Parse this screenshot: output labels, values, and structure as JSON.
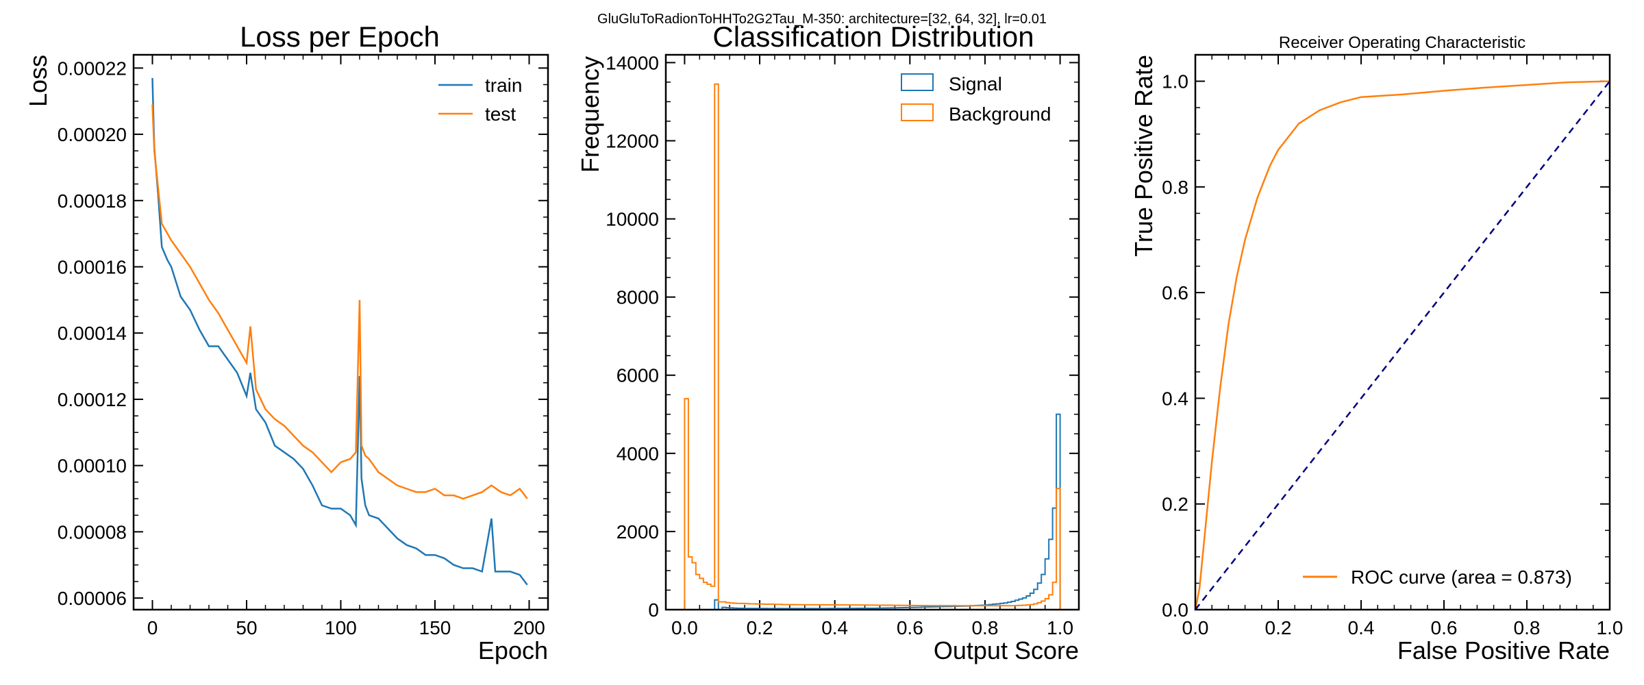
{
  "suptitle": "GluGluToRadionToHHTo2G2Tau_M-350: architecture=[32, 64, 32], lr=0.01",
  "colors": {
    "train": "#1f77b4",
    "test": "#ff7f0e",
    "signal": "#1f77b4",
    "background": "#ff7f0e",
    "roc": "#ff7f0e",
    "diagonal": "#000080"
  },
  "chart_data": [
    {
      "type": "line",
      "title": "Loss per Epoch",
      "xlabel": "Epoch",
      "ylabel": "Loss",
      "xlim": [
        -10,
        210
      ],
      "ylim": [
        5.65e-05,
        0.000224
      ],
      "xticks": [
        0,
        50,
        100,
        150,
        200
      ],
      "xtick_labels": [
        "0",
        "50",
        "100",
        "150",
        "200"
      ],
      "yticks": [
        6e-05,
        8e-05,
        0.0001,
        0.00012,
        0.00014,
        0.00016,
        0.00018,
        0.0002,
        0.00022
      ],
      "ytick_labels": [
        "0.00006",
        "0.00008",
        "0.00010",
        "0.00012",
        "0.00014",
        "0.00016",
        "0.00018",
        "0.00020",
        "0.00022"
      ],
      "legend_position": "top-right",
      "series": [
        {
          "name": "train",
          "color": "#1f77b4",
          "x": [
            0,
            1,
            3,
            5,
            8,
            10,
            15,
            20,
            25,
            30,
            35,
            40,
            45,
            50,
            52,
            55,
            60,
            65,
            70,
            75,
            80,
            85,
            90,
            95,
            100,
            105,
            108,
            110,
            111,
            113,
            115,
            120,
            125,
            130,
            135,
            140,
            145,
            150,
            155,
            160,
            165,
            170,
            175,
            180,
            182,
            185,
            190,
            195,
            199
          ],
          "y": [
            0.000217,
            0.000196,
            0.000182,
            0.000166,
            0.000162,
            0.00016,
            0.000151,
            0.000147,
            0.000141,
            0.000136,
            0.000136,
            0.000132,
            0.000128,
            0.000121,
            0.000128,
            0.000117,
            0.000113,
            0.000106,
            0.000104,
            0.000102,
            9.9e-05,
            9.4e-05,
            8.8e-05,
            8.7e-05,
            8.7e-05,
            8.5e-05,
            8.2e-05,
            0.000127,
            9.6e-05,
            8.8e-05,
            8.5e-05,
            8.4e-05,
            8.1e-05,
            7.8e-05,
            7.6e-05,
            7.5e-05,
            7.3e-05,
            7.3e-05,
            7.2e-05,
            7e-05,
            6.9e-05,
            6.9e-05,
            6.8e-05,
            8.4e-05,
            6.8e-05,
            6.8e-05,
            6.8e-05,
            6.7e-05,
            6.4e-05
          ]
        },
        {
          "name": "test",
          "color": "#ff7f0e",
          "x": [
            0,
            1,
            3,
            5,
            8,
            10,
            15,
            20,
            25,
            30,
            35,
            40,
            45,
            50,
            52,
            55,
            60,
            65,
            70,
            75,
            80,
            85,
            90,
            95,
            100,
            105,
            108,
            110,
            111,
            113,
            115,
            120,
            125,
            130,
            135,
            140,
            145,
            150,
            155,
            160,
            165,
            170,
            175,
            180,
            185,
            190,
            195,
            199
          ],
          "y": [
            0.000209,
            0.000195,
            0.000184,
            0.000173,
            0.00017,
            0.000168,
            0.000164,
            0.00016,
            0.000155,
            0.00015,
            0.000146,
            0.000141,
            0.000136,
            0.000131,
            0.000142,
            0.000123,
            0.000117,
            0.000114,
            0.000112,
            0.000109,
            0.000106,
            0.000104,
            0.000101,
            9.8e-05,
            0.000101,
            0.000102,
            0.000104,
            0.00015,
            0.000106,
            0.000103,
            0.000102,
            9.8e-05,
            9.6e-05,
            9.4e-05,
            9.3e-05,
            9.2e-05,
            9.2e-05,
            9.3e-05,
            9.1e-05,
            9.1e-05,
            9e-05,
            9.1e-05,
            9.2e-05,
            9.4e-05,
            9.2e-05,
            9.1e-05,
            9.3e-05,
            9e-05
          ]
        }
      ]
    },
    {
      "type": "bar",
      "histtype": "step",
      "title": "Classification Distribution",
      "xlabel": "Output Score",
      "ylabel": "Frequency",
      "xlim": [
        -0.05,
        1.05
      ],
      "ylim": [
        0,
        14200
      ],
      "xticks": [
        0,
        0.2,
        0.4,
        0.6,
        0.8,
        1.0
      ],
      "xtick_labels": [
        "0.0",
        "0.2",
        "0.4",
        "0.6",
        "0.8",
        "1.0"
      ],
      "yticks": [
        0,
        2000,
        4000,
        6000,
        8000,
        10000,
        12000,
        14000
      ],
      "ytick_labels": [
        "0",
        "2000",
        "4000",
        "6000",
        "8000",
        "10000",
        "12000",
        "14000"
      ],
      "bins": 100,
      "legend_position": "top-right",
      "series": [
        {
          "name": "Signal",
          "color": "#1f77b4",
          "values": [
            0,
            0,
            0,
            0,
            0,
            0,
            0,
            0,
            250,
            0,
            60,
            50,
            45,
            40,
            35,
            35,
            30,
            30,
            30,
            30,
            30,
            30,
            28,
            28,
            28,
            28,
            28,
            28,
            28,
            28,
            28,
            28,
            28,
            28,
            28,
            28,
            28,
            28,
            30,
            30,
            30,
            30,
            30,
            32,
            32,
            32,
            34,
            34,
            35,
            35,
            36,
            38,
            40,
            42,
            44,
            46,
            48,
            50,
            52,
            55,
            58,
            60,
            62,
            65,
            68,
            70,
            72,
            75,
            78,
            80,
            82,
            85,
            88,
            90,
            92,
            95,
            100,
            105,
            110,
            115,
            120,
            130,
            140,
            150,
            160,
            170,
            190,
            210,
            240,
            270,
            300,
            350,
            420,
            520,
            680,
            900,
            1300,
            1800,
            2600,
            5000
          ]
        },
        {
          "name": "Background",
          "color": "#ff7f0e",
          "values": [
            5400,
            1350,
            1200,
            900,
            800,
            700,
            650,
            600,
            13450,
            200,
            200,
            180,
            170,
            165,
            160,
            160,
            155,
            150,
            150,
            145,
            145,
            140,
            140,
            140,
            135,
            135,
            130,
            130,
            130,
            128,
            128,
            126,
            126,
            125,
            125,
            124,
            124,
            123,
            123,
            122,
            122,
            121,
            121,
            120,
            120,
            120,
            118,
            118,
            118,
            117,
            116,
            115,
            115,
            114,
            113,
            112,
            112,
            110,
            110,
            108,
            108,
            106,
            106,
            105,
            105,
            104,
            104,
            103,
            103,
            102,
            102,
            102,
            101,
            101,
            100,
            100,
            100,
            100,
            100,
            100,
            100,
            100,
            100,
            100,
            100,
            100,
            100,
            100,
            105,
            110,
            115,
            120,
            130,
            150,
            180,
            220,
            280,
            380,
            700,
            3100
          ]
        }
      ]
    },
    {
      "type": "line",
      "title": "Receiver Operating Characteristic",
      "xlabel": "False Positive Rate",
      "ylabel": "True Positive Rate",
      "xlim": [
        0,
        1
      ],
      "ylim": [
        0,
        1.05
      ],
      "xticks": [
        0,
        0.2,
        0.4,
        0.6,
        0.8,
        1.0
      ],
      "xtick_labels": [
        "0.0",
        "0.2",
        "0.4",
        "0.6",
        "0.8",
        "1.0"
      ],
      "yticks": [
        0,
        0.2,
        0.4,
        0.6,
        0.8,
        1.0
      ],
      "ytick_labels": [
        "0.0",
        "0.2",
        "0.4",
        "0.6",
        "0.8",
        "1.0"
      ],
      "legend_position": "lower-right",
      "series": [
        {
          "name": "ROC curve (area = 0.873)",
          "color": "#ff7f0e",
          "x": [
            0,
            0.01,
            0.02,
            0.04,
            0.06,
            0.08,
            0.1,
            0.12,
            0.15,
            0.18,
            0.2,
            0.25,
            0.3,
            0.35,
            0.4,
            0.5,
            0.6,
            0.7,
            0.8,
            0.9,
            1.0
          ],
          "y": [
            0,
            0.04,
            0.12,
            0.28,
            0.42,
            0.54,
            0.63,
            0.7,
            0.78,
            0.84,
            0.87,
            0.92,
            0.945,
            0.96,
            0.97,
            0.975,
            0.982,
            0.988,
            0.993,
            0.998,
            1.0
          ]
        },
        {
          "name": "",
          "color": "#000080",
          "style": "dashed",
          "x": [
            0,
            1
          ],
          "y": [
            0,
            1
          ]
        }
      ]
    }
  ]
}
